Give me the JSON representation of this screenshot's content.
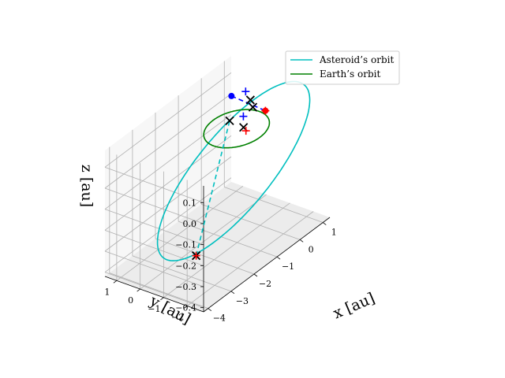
{
  "chart_data": {
    "type": "line",
    "projection": "3d",
    "title": "",
    "xlabel": "x [au]",
    "ylabel": "y [au]",
    "zlabel": "z [au]",
    "xlim": [
      -4.2,
      1.3
    ],
    "ylim": [
      -2.7,
      1.5
    ],
    "zlim": [
      -0.42,
      0.18
    ],
    "x_ticks": [
      -4,
      -3,
      -2,
      -1,
      0,
      1
    ],
    "y_ticks": [
      1,
      0,
      -1,
      -2
    ],
    "z_ticks": [
      0.1,
      0.0,
      -0.1,
      -0.2,
      -0.3,
      -0.4
    ],
    "x_tick_labels": [
      "−4",
      "−3",
      "−2",
      "−1",
      "0",
      "1"
    ],
    "y_tick_labels": [
      "1",
      "0",
      "−1",
      "−2"
    ],
    "z_tick_labels": [
      "0.1",
      "0.0",
      "−0.1",
      "−0.2",
      "−0.3",
      "−0.4"
    ],
    "grid": true,
    "legend": {
      "position": "top-right",
      "entries": [
        "Asteroid’s orbit",
        "Earth’s orbit"
      ]
    },
    "series": [
      {
        "name": "Asteroid’s orbit",
        "color": "#00bfbf",
        "style": "solid",
        "ellipse": {
          "center": [
            -1.05,
            -0.9,
            -0.08
          ],
          "u": [
            -2.55,
            0.75,
            -0.16
          ],
          "v": [
            0.0,
            0.0,
            0.26
          ]
        }
      },
      {
        "name": "Earth’s orbit",
        "color": "#008000",
        "style": "solid",
        "ellipse": {
          "center": [
            0.0,
            0.0,
            0.0
          ],
          "u": [
            1.0,
            0.0,
            0.0
          ],
          "v": [
            0.0,
            1.0,
            0.0
          ]
        }
      }
    ],
    "lines": [
      {
        "name": "asteroid-link",
        "color": "#00bfbf",
        "style": "dashed",
        "from": [
          -3.5,
          -1.7,
          -0.25
        ],
        "to": [
          -0.2,
          0.1,
          0.05
        ]
      },
      {
        "name": "earth-link",
        "color": "#0000ff",
        "style": "dashed",
        "from": [
          0.8,
          1.0,
          0.05
        ],
        "to": [
          0.95,
          -0.3,
          0.02
        ]
      }
    ],
    "markers": [
      {
        "name": "blue-dot",
        "shape": "circle",
        "color": "#0000ff",
        "point": [
          0.8,
          1.0,
          0.05
        ]
      },
      {
        "name": "asteroid-periapsis",
        "shape": "x",
        "color": "#000000",
        "point": [
          -3.5,
          -1.7,
          -0.25
        ]
      },
      {
        "name": "asteroid-periapsis-plus",
        "shape": "plus",
        "color": "#ff0000",
        "point": [
          -3.5,
          -1.7,
          -0.25
        ]
      },
      {
        "name": "x-mid-1",
        "shape": "x",
        "color": "#000000",
        "point": [
          -0.2,
          0.1,
          0.05
        ]
      },
      {
        "name": "x-mid-2",
        "shape": "x",
        "color": "#000000",
        "point": [
          0.15,
          -0.15,
          0.0
        ]
      },
      {
        "name": "x-top-1",
        "shape": "x",
        "color": "#000000",
        "point": [
          0.5,
          -0.1,
          0.1
        ]
      },
      {
        "name": "x-top-2",
        "shape": "x",
        "color": "#000000",
        "point": [
          0.25,
          -0.45,
          0.1
        ]
      },
      {
        "name": "plus-blue-top",
        "shape": "plus",
        "color": "#0000ff",
        "point": [
          0.6,
          0.2,
          0.12
        ]
      },
      {
        "name": "plus-blue-mid",
        "shape": "plus",
        "color": "#0000ff",
        "point": [
          0.5,
          0.2,
          0.01
        ]
      },
      {
        "name": "plus-red-mid",
        "shape": "plus",
        "color": "#ff0000",
        "point": [
          0.05,
          -0.35,
          0.0
        ]
      },
      {
        "name": "plus-red-right",
        "shape": "plus",
        "color": "#ff0000",
        "point": [
          0.95,
          -0.3,
          0.02
        ]
      },
      {
        "name": "dot-red-right",
        "shape": "circle",
        "color": "#ff0000",
        "point": [
          0.95,
          -0.3,
          0.02
        ]
      }
    ]
  }
}
